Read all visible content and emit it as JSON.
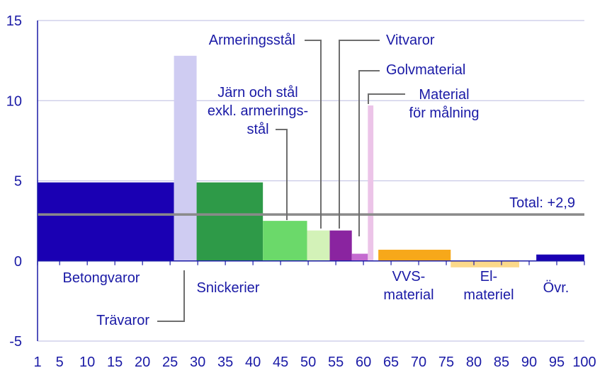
{
  "chart_data": {
    "type": "bar",
    "variable_width": true,
    "title": "",
    "xlabel": "",
    "ylabel": "",
    "xlim": [
      1,
      100
    ],
    "ylim": [
      -5,
      15
    ],
    "grid": true,
    "x_ticks": [
      1,
      5,
      10,
      15,
      20,
      25,
      30,
      35,
      40,
      45,
      50,
      55,
      60,
      65,
      70,
      75,
      80,
      85,
      90,
      95,
      100
    ],
    "y_ticks": [
      -5,
      0,
      5,
      10,
      15
    ],
    "categories": [
      {
        "id": "betong",
        "x0": 1,
        "x1": 25.7,
        "value": 4.9,
        "color": "#1a00b3"
      },
      {
        "id": "travaror",
        "x0": 25.7,
        "x1": 29.8,
        "value": 12.8,
        "color": "#cfccf2"
      },
      {
        "id": "snickerier",
        "x0": 29.8,
        "x1": 41.8,
        "value": 4.9,
        "color": "#2e9a48"
      },
      {
        "id": "jarn",
        "x0": 41.8,
        "x1": 49.8,
        "value": 2.5,
        "color": "#6bd96a"
      },
      {
        "id": "armering",
        "x0": 49.8,
        "x1": 53.9,
        "value": 1.9,
        "color": "#d3f2b8"
      },
      {
        "id": "vitvaror",
        "x0": 53.9,
        "x1": 57.9,
        "value": 1.9,
        "color": "#8a24a0"
      },
      {
        "id": "golv",
        "x0": 57.9,
        "x1": 60.8,
        "value": 0.45,
        "color": "#c46ad0"
      },
      {
        "id": "malning",
        "x0": 60.8,
        "x1": 61.8,
        "value": 9.7,
        "color": "#ecc4e8"
      },
      {
        "id": "vvs",
        "x0": 62.7,
        "x1": 75.8,
        "value": 0.7,
        "color": "#f7a81a"
      },
      {
        "id": "el",
        "x0": 75.8,
        "x1": 88.2,
        "value": -0.4,
        "color": "#fcd98a"
      },
      {
        "id": "ovr",
        "x0": 91.3,
        "x1": 100,
        "value": 0.4,
        "color": "#1a00b3"
      }
    ],
    "total": {
      "value": 2.9,
      "label": "Total: +2,9",
      "color": "#8a8a8a"
    },
    "labels": {
      "betong": "Betongvaror",
      "travaror": "Trävaror",
      "snickerier": "Snickerier",
      "jarn": [
        "Järn och stål",
        "exkl. armerings-",
        "stål"
      ],
      "armering": "Armeringsstål",
      "vitvaror": "Vitvaror",
      "golv": "Golvmaterial",
      "malning": [
        "Material",
        "för målning"
      ],
      "vvs": [
        "VVS-",
        "material"
      ],
      "el": [
        "El-",
        "materiel"
      ],
      "ovr": "Övr."
    },
    "colors": {
      "text": "#1a1aa6",
      "grid": "#c8c8e6",
      "axis": "#1a1aa6",
      "leader": "#6e6e6e"
    }
  }
}
